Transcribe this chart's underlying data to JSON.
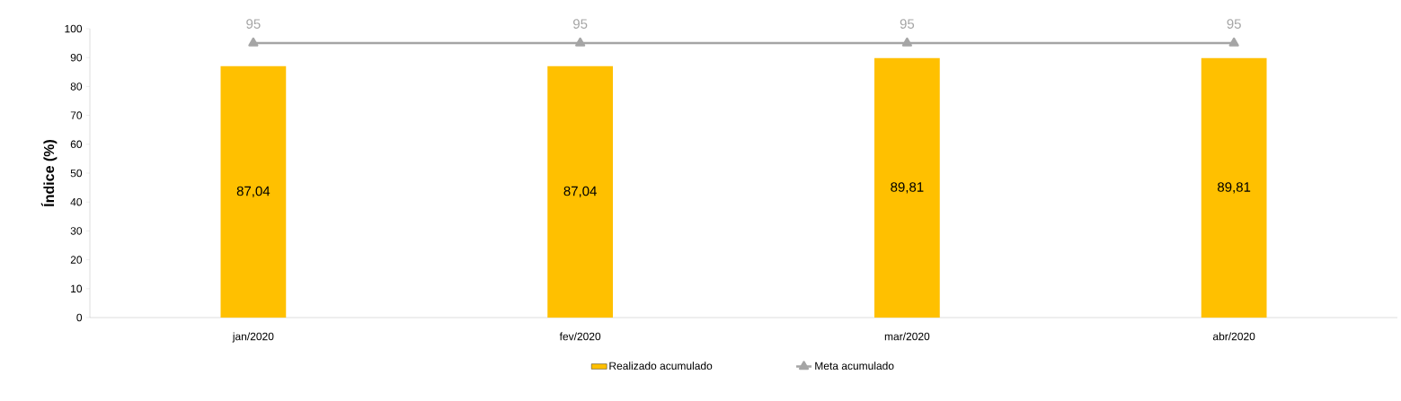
{
  "chart_data": {
    "type": "bar",
    "ylabel": "Índice (%)",
    "categories": [
      "jan/2020",
      "fev/2020",
      "mar/2020",
      "abr/2020"
    ],
    "series": [
      {
        "name": "Realizado acumulado",
        "color": "#ffc000",
        "values": [
          87.04,
          87.04,
          89.81,
          89.81
        ],
        "value_labels": [
          "87,04",
          "87,04",
          "89,81",
          "89,81"
        ]
      },
      {
        "name": "Meta acumulado",
        "type": "line",
        "color": "#a5a5a5",
        "marker": "triangle",
        "values": [
          95,
          95,
          95,
          95
        ],
        "value_labels": [
          "95",
          "95",
          "95",
          "95"
        ]
      }
    ],
    "ylim": [
      0,
      100
    ],
    "yticks": [
      0,
      10,
      20,
      30,
      40,
      50,
      60,
      70,
      80,
      90,
      100
    ],
    "grid": false,
    "legend": "bottom"
  }
}
